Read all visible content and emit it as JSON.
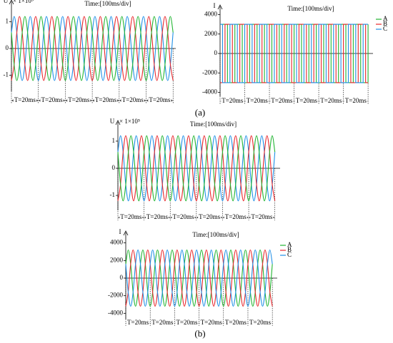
{
  "captions": [
    "(a)",
    "(b)"
  ],
  "chart_data": [
    {
      "type": "line",
      "interpolation": "spline",
      "y_label": "U",
      "y_multiplier": "× 1×10⁵",
      "annotation": "Time:[100ms/div]",
      "x": [
        0,
        2,
        4,
        6,
        8,
        10,
        12,
        14,
        16,
        18,
        20,
        22,
        24,
        26,
        28,
        30,
        32,
        34,
        36,
        38,
        40,
        42,
        44,
        46,
        48,
        50,
        52,
        54,
        56,
        58,
        60,
        62,
        64,
        66,
        68,
        70,
        72,
        74,
        76,
        78,
        80,
        82,
        84,
        86,
        88,
        90,
        92,
        94,
        96,
        98,
        100,
        102,
        104,
        106,
        108,
        110,
        112,
        114,
        116,
        118,
        120
      ],
      "xlim": [
        0,
        122
      ],
      "xticks": [
        0,
        20,
        40,
        60,
        80,
        100,
        120
      ],
      "period_labels": [
        "T=20ms",
        "T=20ms",
        "T=20ms",
        "T=20ms",
        "T=20ms",
        "T=20ms"
      ],
      "ylim": [
        -1.6,
        1.6
      ],
      "yticks": [
        -1,
        0,
        1
      ],
      "series": [
        {
          "color": "#1f8fe6",
          "values": [
            0.6,
            1.2,
            0.6,
            -0.6,
            -1.2,
            -0.6,
            0.6,
            1.2,
            0.6,
            -0.6,
            -1.2,
            -0.6,
            0.6,
            1.2,
            0.6,
            -0.6,
            -1.2,
            -0.6,
            0.6,
            1.2,
            0.6,
            -0.6,
            -1.2,
            -0.6,
            0.6,
            1.2,
            0.6,
            -0.6,
            -1.2,
            -0.6,
            0.6,
            1.2,
            0.6,
            -0.6,
            -1.2,
            -0.6,
            0.6,
            1.2,
            0.6,
            -0.6,
            -1.2,
            -0.6,
            0.6,
            1.2,
            0.6,
            -0.6,
            -1.2,
            -0.6,
            0.6,
            1.2,
            0.6,
            -0.6,
            -1.2,
            -0.6,
            0.6,
            1.2,
            0.6,
            -0.6,
            -1.2,
            -0.6,
            0.6
          ]
        },
        {
          "color": "#e8262b",
          "values": [
            -1.2,
            -0.6,
            0.6,
            1.2,
            0.6,
            -0.6,
            -1.2,
            -0.6,
            0.6,
            1.2,
            0.6,
            -0.6,
            -1.2,
            -0.6,
            0.6,
            1.2,
            0.6,
            -0.6,
            -1.2,
            -0.6,
            0.6,
            1.2,
            0.6,
            -0.6,
            -1.2,
            -0.6,
            0.6,
            1.2,
            0.6,
            -0.6,
            -1.2,
            -0.6,
            0.6,
            1.2,
            0.6,
            -0.6,
            -1.2,
            -0.6,
            0.6,
            1.2,
            0.6,
            -0.6,
            -1.2,
            -0.6,
            0.6,
            1.2,
            0.6,
            -0.6,
            -1.2,
            -0.6,
            0.6,
            1.2,
            0.6,
            -0.6,
            -1.2,
            -0.6,
            0.6,
            1.2,
            0.6,
            -0.6,
            -1.2
          ]
        },
        {
          "color": "#22b532",
          "values": [
            0.6,
            -0.6,
            -1.2,
            -0.6,
            0.6,
            1.2,
            0.6,
            -0.6,
            -1.2,
            -0.6,
            0.6,
            1.2,
            0.6,
            -0.6,
            -1.2,
            -0.6,
            0.6,
            1.2,
            0.6,
            -0.6,
            -1.2,
            -0.6,
            0.6,
            1.2,
            0.6,
            -0.6,
            -1.2,
            -0.6,
            0.6,
            1.2,
            0.6,
            -0.6,
            -1.2,
            -0.6,
            0.6,
            1.2,
            0.6,
            -0.6,
            -1.2,
            -0.6,
            0.6,
            1.2,
            0.6,
            -0.6,
            -1.2,
            -0.6,
            0.6,
            1.2,
            0.6,
            -0.6,
            -1.2,
            -0.6,
            0.6,
            1.2,
            0.6,
            -0.6,
            -1.2,
            -0.6,
            0.6,
            1.2,
            0.6
          ]
        }
      ]
    },
    {
      "type": "line",
      "interpolation": "step",
      "y_label": "I",
      "annotation": "Time:[100ms/div]",
      "legend": "top-right",
      "x": [
        0,
        2,
        4,
        6,
        8,
        10,
        12,
        14,
        16,
        18,
        20,
        22,
        24,
        26,
        28,
        30,
        32,
        34,
        36,
        38,
        40,
        42,
        44,
        46,
        48,
        50,
        52,
        54,
        56,
        58,
        60,
        62,
        64,
        66,
        68,
        70,
        72,
        74,
        76,
        78,
        80,
        82,
        84,
        86,
        88,
        90,
        92,
        94,
        96,
        98,
        100,
        102,
        104,
        106,
        108,
        110,
        112,
        114,
        116,
        118,
        120
      ],
      "xlim": [
        0,
        124
      ],
      "xticks": [
        0,
        20,
        40,
        60,
        80,
        100,
        120
      ],
      "period_labels": [
        "T=20ms",
        "T=20ms",
        "T=20ms",
        "T=20ms",
        "T=20ms",
        "T=20ms"
      ],
      "ylim": [
        -4400,
        4400
      ],
      "yticks": [
        -4000,
        -2000,
        0,
        2000,
        4000
      ],
      "series": [
        {
          "name": "A",
          "color": "#22b532",
          "values": [
            3000,
            3000,
            3000,
            -3000,
            -3000,
            -3000,
            3000,
            3000,
            3000,
            -3000,
            -3000,
            -3000,
            3000,
            3000,
            3000,
            -3000,
            -3000,
            -3000,
            3000,
            3000,
            3000,
            -3000,
            -3000,
            -3000,
            3000,
            3000,
            3000,
            -3000,
            -3000,
            -3000,
            3000,
            3000,
            3000,
            -3000,
            -3000,
            -3000,
            3000,
            3000,
            3000,
            -3000,
            -3000,
            -3000,
            3000,
            3000,
            3000,
            -3000,
            -3000,
            -3000,
            3000,
            3000,
            3000,
            -3000,
            -3000,
            -3000,
            3000,
            3000,
            3000,
            -3000,
            -3000,
            -3000,
            3000
          ]
        },
        {
          "name": "B",
          "color": "#e8262b",
          "values": [
            -3000,
            -3000,
            3000,
            3000,
            3000,
            -3000,
            -3000,
            -3000,
            3000,
            3000,
            3000,
            -3000,
            -3000,
            -3000,
            3000,
            3000,
            3000,
            -3000,
            -3000,
            -3000,
            3000,
            3000,
            3000,
            -3000,
            -3000,
            -3000,
            3000,
            3000,
            3000,
            -3000,
            -3000,
            -3000,
            3000,
            3000,
            3000,
            -3000,
            -3000,
            -3000,
            3000,
            3000,
            3000,
            -3000,
            -3000,
            -3000,
            3000,
            3000,
            3000,
            -3000,
            -3000,
            -3000,
            3000,
            3000,
            3000,
            -3000,
            -3000,
            -3000,
            3000,
            3000,
            3000,
            -3000,
            -3000
          ]
        },
        {
          "name": "C",
          "color": "#1f8fe6",
          "values": [
            3000,
            -3000,
            -3000,
            -3000,
            3000,
            3000,
            3000,
            -3000,
            -3000,
            -3000,
            3000,
            3000,
            3000,
            -3000,
            -3000,
            -3000,
            3000,
            3000,
            3000,
            -3000,
            -3000,
            -3000,
            3000,
            3000,
            3000,
            -3000,
            -3000,
            -3000,
            3000,
            3000,
            3000,
            -3000,
            -3000,
            -3000,
            3000,
            3000,
            3000,
            -3000,
            -3000,
            -3000,
            3000,
            3000,
            3000,
            -3000,
            -3000,
            -3000,
            3000,
            3000,
            3000,
            -3000,
            -3000,
            -3000,
            3000,
            3000,
            3000,
            -3000,
            -3000,
            -3000,
            3000,
            3000,
            3000
          ]
        }
      ]
    },
    {
      "type": "line",
      "interpolation": "spline",
      "y_label": "U",
      "y_multiplier": "× 1×10⁵",
      "annotation": "Time:[100ms/div]",
      "x": [
        0,
        2,
        4,
        6,
        8,
        10,
        12,
        14,
        16,
        18,
        20,
        22,
        24,
        26,
        28,
        30,
        32,
        34,
        36,
        38,
        40,
        42,
        44,
        46,
        48,
        50,
        52,
        54,
        56,
        58,
        60,
        62,
        64,
        66,
        68,
        70,
        72,
        74,
        76,
        78,
        80,
        82,
        84,
        86,
        88,
        90,
        92,
        94,
        96,
        98,
        100,
        102,
        104,
        106,
        108,
        110,
        112,
        114,
        116,
        118,
        120
      ],
      "xlim": [
        0,
        124
      ],
      "xticks": [
        0,
        20,
        40,
        60,
        80,
        100,
        120
      ],
      "period_labels": [
        "T=20ms",
        "T=20ms",
        "T=20ms",
        "T=20ms",
        "T=20ms",
        "T=20ms"
      ],
      "ylim": [
        -1.55,
        1.55
      ],
      "yticks": [
        -1,
        0,
        1
      ],
      "series": [
        {
          "color": "#1f8fe6",
          "values": [
            0.6,
            1.2,
            0.6,
            -0.6,
            -1.2,
            -0.6,
            0.6,
            1.2,
            0.6,
            -0.6,
            -1.2,
            -0.6,
            0.6,
            1.2,
            0.6,
            -0.6,
            -1.2,
            -0.6,
            0.6,
            1.2,
            0.6,
            -0.6,
            -1.2,
            -0.6,
            0.6,
            1.2,
            0.6,
            -0.6,
            -1.2,
            -0.6,
            0.6,
            1.2,
            0.6,
            -0.6,
            -1.2,
            -0.6,
            0.6,
            1.2,
            0.6,
            -0.6,
            -1.2,
            -0.6,
            0.6,
            1.2,
            0.6,
            -0.6,
            -1.2,
            -0.6,
            0.6,
            1.2,
            0.6,
            -0.6,
            -1.2,
            -0.6,
            0.6,
            1.2,
            0.6,
            -0.6,
            -1.2,
            -0.6,
            0.6
          ]
        },
        {
          "color": "#e8262b",
          "values": [
            -1.2,
            -0.6,
            0.6,
            1.2,
            0.6,
            -0.6,
            -1.2,
            -0.6,
            0.6,
            1.2,
            0.6,
            -0.6,
            -1.2,
            -0.6,
            0.6,
            1.2,
            0.6,
            -0.6,
            -1.2,
            -0.6,
            0.6,
            1.2,
            0.6,
            -0.6,
            -1.2,
            -0.6,
            0.6,
            1.2,
            0.6,
            -0.6,
            -1.2,
            -0.6,
            0.6,
            1.2,
            0.6,
            -0.6,
            -1.2,
            -0.6,
            0.6,
            1.2,
            0.6,
            -0.6,
            -1.2,
            -0.6,
            0.6,
            1.2,
            0.6,
            -0.6,
            -1.2,
            -0.6,
            0.6,
            1.2,
            0.6,
            -0.6,
            -1.2,
            -0.6,
            0.6,
            1.2,
            0.6,
            -0.6,
            -1.2
          ]
        },
        {
          "color": "#22b532",
          "values": [
            0.6,
            -0.6,
            -1.2,
            -0.6,
            0.6,
            1.2,
            0.6,
            -0.6,
            -1.2,
            -0.6,
            0.6,
            1.2,
            0.6,
            -0.6,
            -1.2,
            -0.6,
            0.6,
            1.2,
            0.6,
            -0.6,
            -1.2,
            -0.6,
            0.6,
            1.2,
            0.6,
            -0.6,
            -1.2,
            -0.6,
            0.6,
            1.2,
            0.6,
            -0.6,
            -1.2,
            -0.6,
            0.6,
            1.2,
            0.6,
            -0.6,
            -1.2,
            -0.6,
            0.6,
            1.2,
            0.6,
            -0.6,
            -1.2,
            -0.6,
            0.6,
            1.2,
            0.6,
            -0.6,
            -1.2,
            -0.6,
            0.6,
            1.2,
            0.6,
            -0.6,
            -1.2,
            -0.6,
            0.6,
            1.2,
            0.6
          ]
        }
      ]
    },
    {
      "type": "line",
      "interpolation": "spline",
      "y_label": "I",
      "annotation": "Time:[100ms/div]",
      "legend": "top-right",
      "x": [
        0,
        2,
        4,
        6,
        8,
        10,
        12,
        14,
        16,
        18,
        20,
        22,
        24,
        26,
        28,
        30,
        32,
        34,
        36,
        38,
        40,
        42,
        44,
        46,
        48,
        50,
        52,
        54,
        56,
        58,
        60,
        62,
        64,
        66,
        68,
        70,
        72,
        74,
        76,
        78,
        80,
        82,
        84,
        86,
        88,
        90,
        92,
        94,
        96,
        98,
        100,
        102,
        104,
        106,
        108,
        110,
        112,
        114,
        116,
        118,
        120
      ],
      "xlim": [
        0,
        124
      ],
      "xticks": [
        0,
        20,
        40,
        60,
        80,
        100,
        120
      ],
      "period_labels": [
        "T=20ms",
        "T=20ms",
        "T=20ms",
        "T=20ms",
        "T=20ms",
        "T=20ms"
      ],
      "ylim": [
        -4700,
        4700
      ],
      "yticks": [
        -4000,
        -2000,
        0,
        2000,
        4000
      ],
      "series": [
        {
          "name": "A",
          "color": "#22b532",
          "values": [
            1600,
            3200,
            1600,
            -1600,
            -3200,
            -1600,
            1600,
            3200,
            1600,
            -1600,
            -3200,
            -1600,
            1600,
            3200,
            1600,
            -1600,
            -3200,
            -1600,
            1600,
            3200,
            1600,
            -1600,
            -3200,
            -1600,
            1600,
            3200,
            1600,
            -1600,
            -3200,
            -1600,
            1600,
            3200,
            1600,
            -1600,
            -3200,
            -1600,
            1600,
            3200,
            1600,
            -1600,
            -3200,
            -1600,
            1600,
            3200,
            1600,
            -1600,
            -3200,
            -1600,
            1600,
            3200,
            1600,
            -1600,
            -3200,
            -1600,
            1600,
            3200,
            1600,
            -1600,
            -3200,
            -1600,
            1600
          ]
        },
        {
          "name": "B",
          "color": "#e8262b",
          "values": [
            -3200,
            -1600,
            1600,
            3200,
            1600,
            -1600,
            -3200,
            -1600,
            1600,
            3200,
            1600,
            -1600,
            -3200,
            -1600,
            1600,
            3200,
            1600,
            -1600,
            -3200,
            -1600,
            1600,
            3200,
            1600,
            -1600,
            -3200,
            -1600,
            1600,
            3200,
            1600,
            -1600,
            -3200,
            -1600,
            1600,
            3200,
            1600,
            -1600,
            -3200,
            -1600,
            1600,
            3200,
            1600,
            -1600,
            -3200,
            -1600,
            1600,
            3200,
            1600,
            -1600,
            -3200,
            -1600,
            1600,
            3200,
            1600,
            -1600,
            -3200,
            -1600,
            1600,
            3200,
            1600,
            -1600,
            -3200
          ]
        },
        {
          "name": "C",
          "color": "#1f8fe6",
          "values": [
            1600,
            -1600,
            -3200,
            -1600,
            1600,
            3200,
            1600,
            -1600,
            -3200,
            -1600,
            1600,
            3200,
            1600,
            -1600,
            -3200,
            -1600,
            1600,
            3200,
            1600,
            -1600,
            -3200,
            -1600,
            1600,
            3200,
            1600,
            -1600,
            -3200,
            -1600,
            1600,
            3200,
            1600,
            -1600,
            -3200,
            -1600,
            1600,
            3200,
            1600,
            -1600,
            -3200,
            -1600,
            1600,
            3200,
            1600,
            -1600,
            -3200,
            -1600,
            1600,
            3200,
            1600,
            -1600,
            -3200,
            -1600,
            1600,
            3200,
            1600,
            -1600,
            -3200,
            -1600,
            1600,
            3200,
            1600
          ]
        }
      ]
    }
  ]
}
